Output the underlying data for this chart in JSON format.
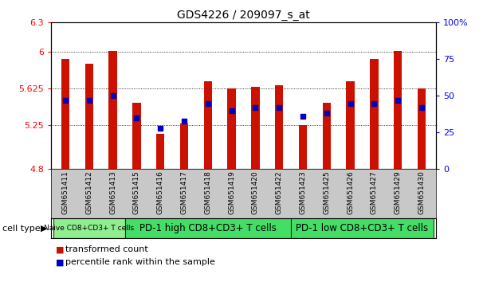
{
  "title": "GDS4226 / 209097_s_at",
  "samples": [
    "GSM651411",
    "GSM651412",
    "GSM651413",
    "GSM651415",
    "GSM651416",
    "GSM651417",
    "GSM651418",
    "GSM651419",
    "GSM651420",
    "GSM651422",
    "GSM651423",
    "GSM651425",
    "GSM651426",
    "GSM651427",
    "GSM651429",
    "GSM651430"
  ],
  "red_values": [
    5.93,
    5.88,
    6.01,
    5.48,
    5.16,
    5.27,
    5.7,
    5.63,
    5.64,
    5.66,
    5.25,
    5.48,
    5.7,
    5.93,
    6.01,
    5.63
  ],
  "blue_percentiles": [
    47,
    47,
    50,
    35,
    28,
    33,
    45,
    40,
    42,
    42,
    36,
    38,
    45,
    45,
    47,
    42
  ],
  "ymin": 4.8,
  "ymax": 6.3,
  "yticks": [
    4.8,
    5.25,
    5.625,
    6.0,
    6.3
  ],
  "ytick_labels": [
    "4.8",
    "5.25",
    "5.625",
    "6",
    "6.3"
  ],
  "right_yticks": [
    0,
    25,
    50,
    75,
    100
  ],
  "right_ytick_labels": [
    "0",
    "25",
    "50",
    "75",
    "100%"
  ],
  "grid_values": [
    5.25,
    5.625,
    6.0
  ],
  "cell_type_starts": [
    0,
    3,
    10
  ],
  "cell_type_ends": [
    3,
    10,
    16
  ],
  "cell_type_labels": [
    "Naive CD8+CD3+ T cells",
    "PD-1 high CD8+CD3+ T cells",
    "PD-1 low CD8+CD3+ T cells"
  ],
  "cell_type_colors": [
    "#90EE90",
    "#44DD66",
    "#44DD66"
  ],
  "cell_type_fontsizes": [
    6.5,
    8.5,
    8.5
  ],
  "bar_color": "#CC1100",
  "blue_color": "#0000BB",
  "bar_width": 0.35,
  "sample_area_color": "#C8C8C8",
  "legend_items": [
    {
      "label": "transformed count",
      "color": "#CC1100"
    },
    {
      "label": "percentile rank within the sample",
      "color": "#0000BB"
    }
  ]
}
